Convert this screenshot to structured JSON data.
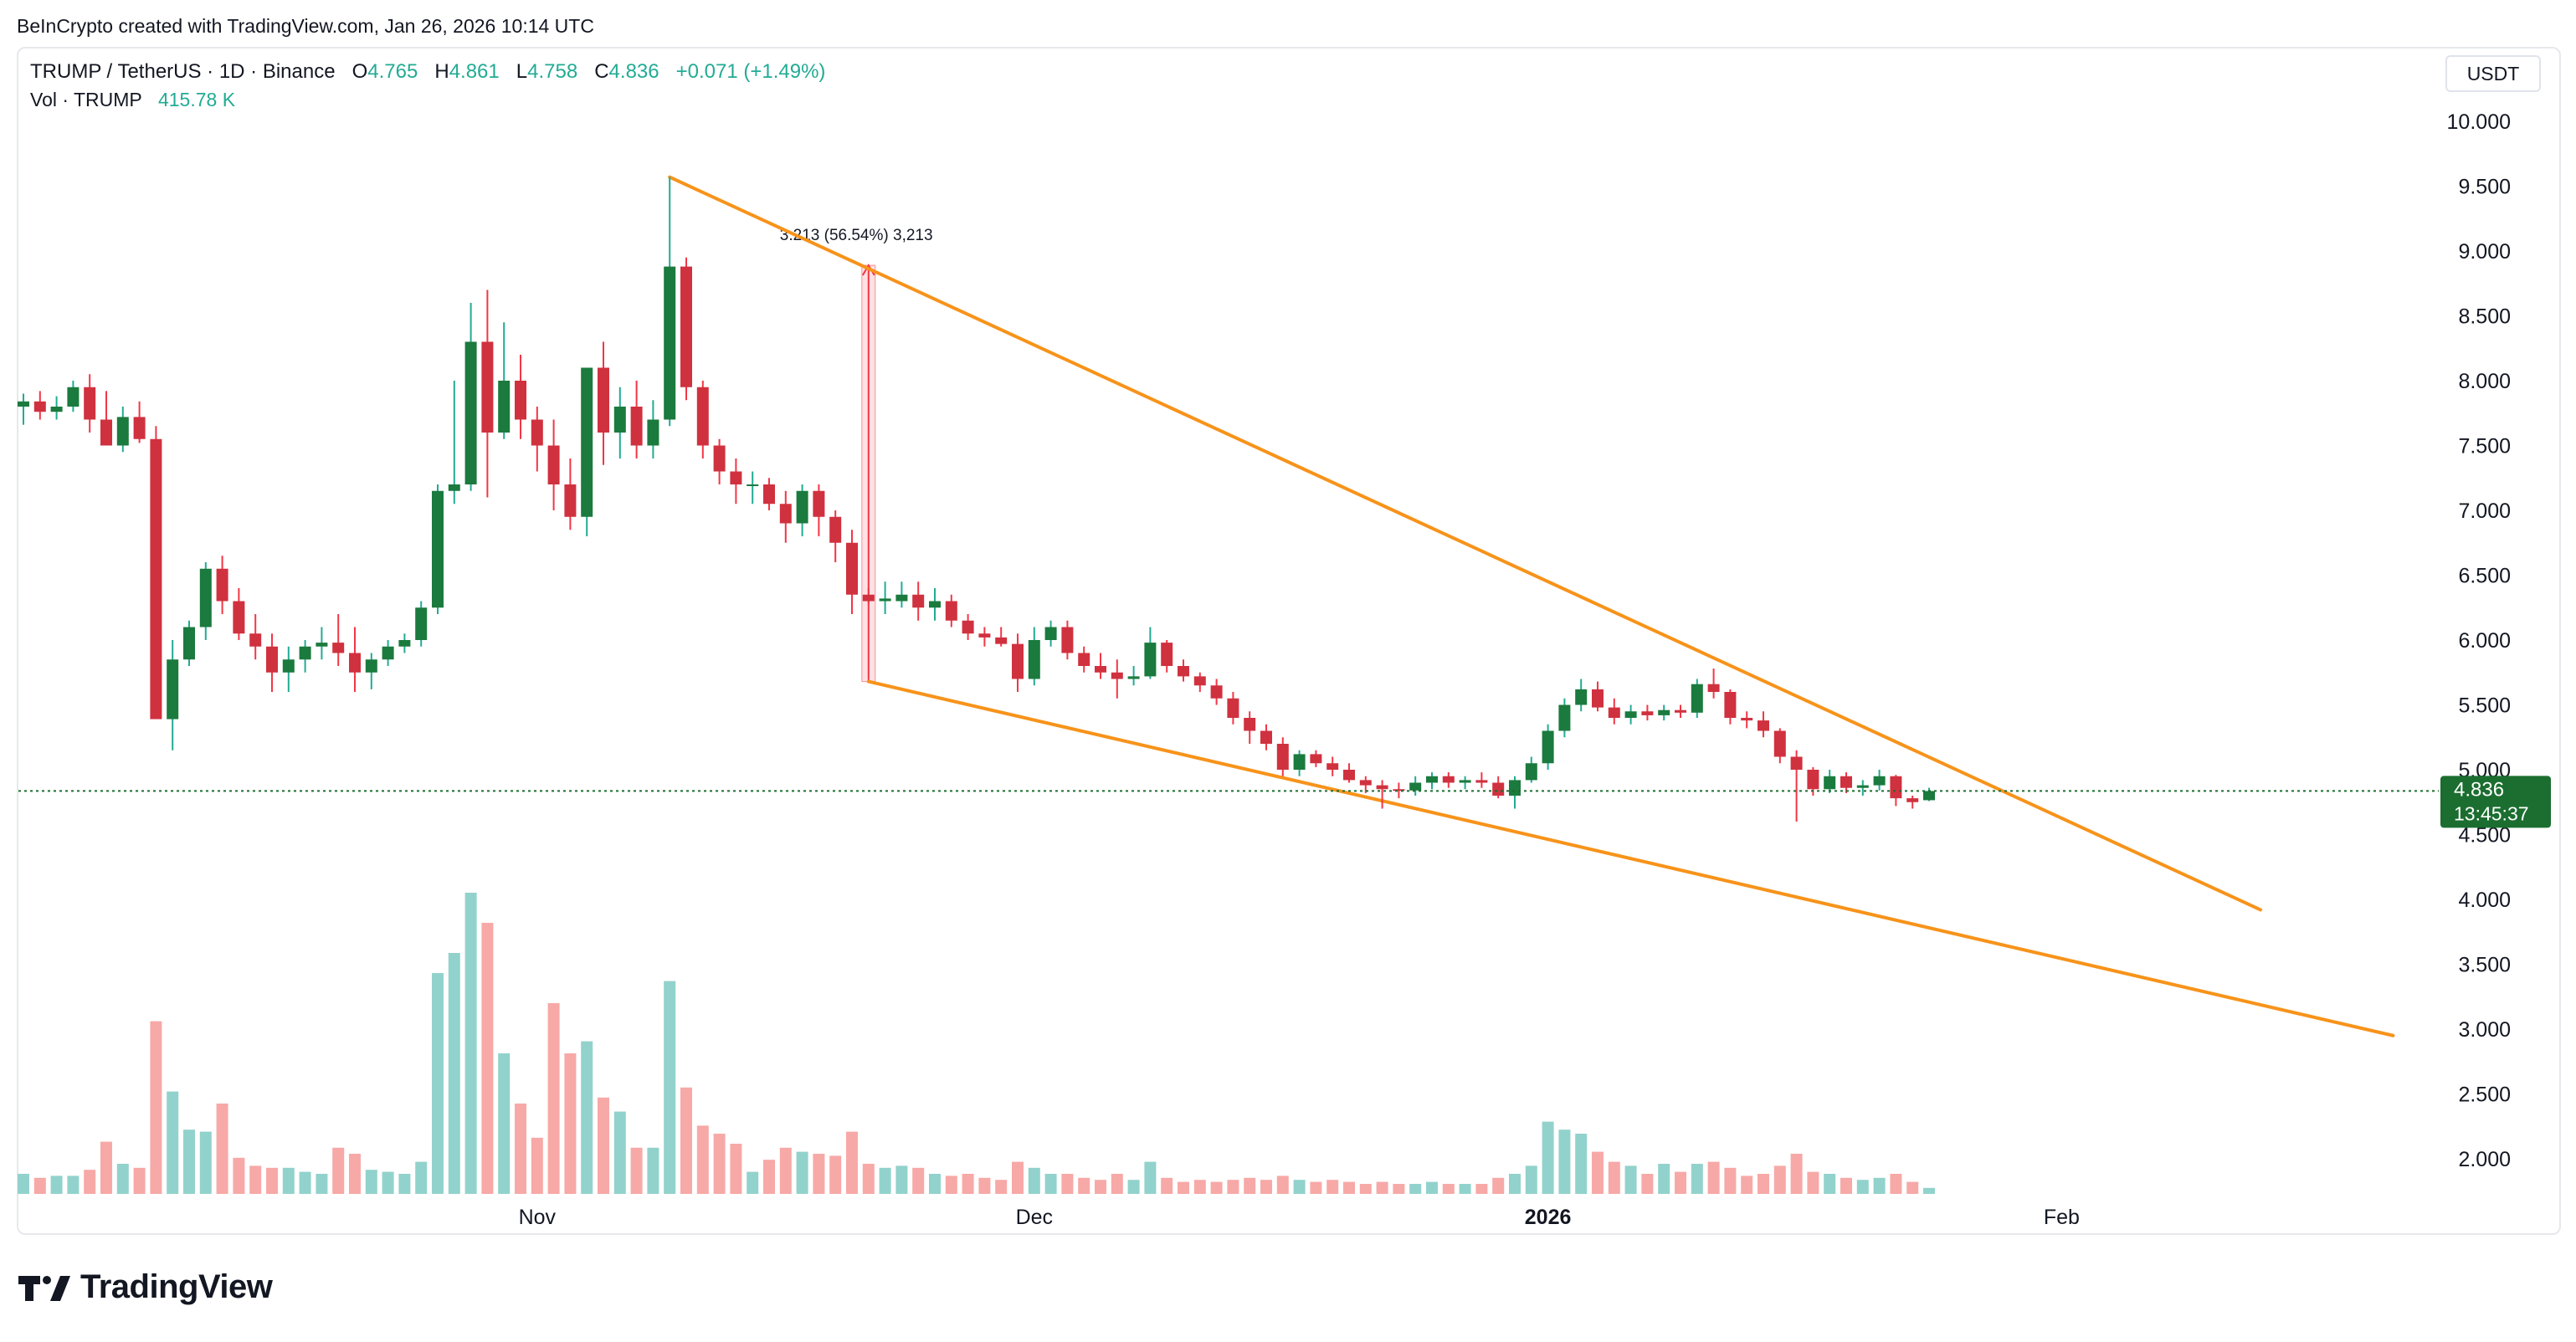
{
  "credit": "BeInCrypto created with TradingView.com, Jan 26, 2026 10:14 UTC",
  "legend": {
    "symbol": "TRUMP / TetherUS · 1D · Binance",
    "o_label": "O",
    "o_value": "4.765",
    "h_label": "H",
    "h_value": "4.861",
    "l_label": "L",
    "l_value": "4.758",
    "c_label": "C",
    "c_value": "4.836",
    "change": "+0.071 (+1.49%)",
    "vol_label": "Vol · TRUMP",
    "vol_value": "415.78 K"
  },
  "unit_button": "USDT",
  "logo_text": "TradingView",
  "colors": {
    "up": "#22ab94",
    "down": "#f23645",
    "upBody": "#1b7a3e",
    "downBody": "#d0313f",
    "upVol": "#92d2cc",
    "downVol": "#f7a9a7",
    "trend": "#f7931a",
    "priceTag": "#1b6e2f"
  },
  "chart_data": {
    "type": "candlestick",
    "symbol": "TRUMP / TetherUS",
    "interval": "1D",
    "exchange": "Binance",
    "y_axis": {
      "ylim": [
        1.5,
        10.3
      ],
      "ticks": [
        "10.000",
        "9.500",
        "9.000",
        "8.500",
        "8.000",
        "7.500",
        "7.000",
        "6.500",
        "6.000",
        "5.500",
        "5.000",
        "4.500",
        "4.000",
        "3.500",
        "3.000",
        "2.500",
        "2.000"
      ]
    },
    "x_axis": {
      "start_date": "2025-10-01",
      "end_date": "2026-02-28",
      "ticks": [
        {
          "label": "Nov",
          "date": "2025-11-01"
        },
        {
          "label": "Dec",
          "date": "2025-12-01"
        },
        {
          "label": "2026",
          "date": "2026-01-01",
          "bold": true
        },
        {
          "label": "Feb",
          "date": "2026-02-01"
        }
      ]
    },
    "current_price": {
      "price": "4.836",
      "countdown": "13:45:37"
    },
    "measure": {
      "label": "3.213 (56.54%) 3,213",
      "from_date": "2025-11-21",
      "from_price": 5.68,
      "to_price": 8.89
    },
    "trendlines": [
      {
        "name": "upper",
        "from": [
          "2025-11-09",
          9.57
        ],
        "to": [
          "2026-02-13",
          3.92
        ]
      },
      {
        "name": "lower",
        "from": [
          "2025-11-21",
          5.68
        ],
        "to": [
          "2026-02-21",
          2.95
        ]
      }
    ],
    "candles": [
      {
        "d": "2025-10-01",
        "o": 7.8,
        "h": 7.9,
        "l": 7.66,
        "c": 7.84,
        "v": 1.0
      },
      {
        "d": "2025-10-02",
        "o": 7.84,
        "h": 7.92,
        "l": 7.7,
        "c": 7.76,
        "v": 0.8
      },
      {
        "d": "2025-10-03",
        "o": 7.76,
        "h": 7.88,
        "l": 7.7,
        "c": 7.8,
        "v": 0.9
      },
      {
        "d": "2025-10-04",
        "o": 7.8,
        "h": 8.0,
        "l": 7.76,
        "c": 7.95,
        "v": 0.9
      },
      {
        "d": "2025-10-05",
        "o": 7.95,
        "h": 8.05,
        "l": 7.6,
        "c": 7.7,
        "v": 1.2
      },
      {
        "d": "2025-10-06",
        "o": 7.7,
        "h": 7.92,
        "l": 7.5,
        "c": 7.5,
        "v": 2.6
      },
      {
        "d": "2025-10-07",
        "o": 7.5,
        "h": 7.8,
        "l": 7.45,
        "c": 7.72,
        "v": 1.5
      },
      {
        "d": "2025-10-08",
        "o": 7.72,
        "h": 7.84,
        "l": 7.52,
        "c": 7.55,
        "v": 1.3
      },
      {
        "d": "2025-10-09",
        "o": 7.55,
        "h": 7.65,
        "l": 5.39,
        "c": 5.39,
        "v": 8.6
      },
      {
        "d": "2025-10-10",
        "o": 5.39,
        "h": 6.0,
        "l": 5.15,
        "c": 5.85,
        "v": 5.1
      },
      {
        "d": "2025-10-11",
        "o": 5.85,
        "h": 6.15,
        "l": 5.8,
        "c": 6.1,
        "v": 3.2
      },
      {
        "d": "2025-10-12",
        "o": 6.1,
        "h": 6.6,
        "l": 6.0,
        "c": 6.55,
        "v": 3.1
      },
      {
        "d": "2025-10-13",
        "o": 6.55,
        "h": 6.65,
        "l": 6.2,
        "c": 6.3,
        "v": 4.5
      },
      {
        "d": "2025-10-14",
        "o": 6.3,
        "h": 6.4,
        "l": 6.0,
        "c": 6.05,
        "v": 1.8
      },
      {
        "d": "2025-10-15",
        "o": 6.05,
        "h": 6.2,
        "l": 5.85,
        "c": 5.95,
        "v": 1.4
      },
      {
        "d": "2025-10-16",
        "o": 5.95,
        "h": 6.05,
        "l": 5.6,
        "c": 5.75,
        "v": 1.3
      },
      {
        "d": "2025-10-17",
        "o": 5.75,
        "h": 5.95,
        "l": 5.6,
        "c": 5.85,
        "v": 1.3
      },
      {
        "d": "2025-10-18",
        "o": 5.85,
        "h": 6.0,
        "l": 5.75,
        "c": 5.95,
        "v": 1.1
      },
      {
        "d": "2025-10-19",
        "o": 5.95,
        "h": 6.1,
        "l": 5.85,
        "c": 5.98,
        "v": 1.0
      },
      {
        "d": "2025-10-20",
        "o": 5.98,
        "h": 6.2,
        "l": 5.8,
        "c": 5.9,
        "v": 2.3
      },
      {
        "d": "2025-10-21",
        "o": 5.9,
        "h": 6.1,
        "l": 5.6,
        "c": 5.75,
        "v": 2.0
      },
      {
        "d": "2025-10-22",
        "o": 5.75,
        "h": 5.9,
        "l": 5.62,
        "c": 5.85,
        "v": 1.2
      },
      {
        "d": "2025-10-23",
        "o": 5.85,
        "h": 6.0,
        "l": 5.8,
        "c": 5.95,
        "v": 1.1
      },
      {
        "d": "2025-10-24",
        "o": 5.95,
        "h": 6.05,
        "l": 5.9,
        "c": 6.0,
        "v": 1.0
      },
      {
        "d": "2025-10-25",
        "o": 6.0,
        "h": 6.3,
        "l": 5.95,
        "c": 6.25,
        "v": 1.6
      },
      {
        "d": "2025-10-26",
        "o": 6.25,
        "h": 7.2,
        "l": 6.2,
        "c": 7.15,
        "v": 11.0
      },
      {
        "d": "2025-10-27",
        "o": 7.15,
        "h": 8.0,
        "l": 7.05,
        "c": 7.2,
        "v": 12.0
      },
      {
        "d": "2025-10-28",
        "o": 7.2,
        "h": 8.6,
        "l": 7.15,
        "c": 8.3,
        "v": 15.0
      },
      {
        "d": "2025-10-29",
        "o": 8.3,
        "h": 8.7,
        "l": 7.1,
        "c": 7.6,
        "v": 13.5
      },
      {
        "d": "2025-10-30",
        "o": 7.6,
        "h": 8.45,
        "l": 7.55,
        "c": 8.0,
        "v": 7.0
      },
      {
        "d": "2025-10-31",
        "o": 8.0,
        "h": 8.2,
        "l": 7.55,
        "c": 7.7,
        "v": 4.5
      },
      {
        "d": "2025-11-01",
        "o": 7.7,
        "h": 7.8,
        "l": 7.3,
        "c": 7.5,
        "v": 2.8
      },
      {
        "d": "2025-11-02",
        "o": 7.5,
        "h": 7.7,
        "l": 7.0,
        "c": 7.2,
        "v": 9.5
      },
      {
        "d": "2025-11-03",
        "o": 7.2,
        "h": 7.4,
        "l": 6.85,
        "c": 6.95,
        "v": 7.0
      },
      {
        "d": "2025-11-04",
        "o": 6.95,
        "h": 8.1,
        "l": 6.8,
        "c": 8.1,
        "v": 7.6
      },
      {
        "d": "2025-11-05",
        "o": 8.1,
        "h": 8.3,
        "l": 7.35,
        "c": 7.6,
        "v": 4.8
      },
      {
        "d": "2025-11-06",
        "o": 7.6,
        "h": 7.95,
        "l": 7.4,
        "c": 7.8,
        "v": 4.1
      },
      {
        "d": "2025-11-07",
        "o": 7.8,
        "h": 8.0,
        "l": 7.4,
        "c": 7.5,
        "v": 2.3
      },
      {
        "d": "2025-11-08",
        "o": 7.5,
        "h": 7.85,
        "l": 7.4,
        "c": 7.7,
        "v": 2.3
      },
      {
        "d": "2025-11-09",
        "o": 7.7,
        "h": 9.57,
        "l": 7.65,
        "c": 8.88,
        "v": 10.6
      },
      {
        "d": "2025-11-10",
        "o": 8.88,
        "h": 8.95,
        "l": 7.85,
        "c": 7.95,
        "v": 5.3
      },
      {
        "d": "2025-11-11",
        "o": 7.95,
        "h": 8.0,
        "l": 7.4,
        "c": 7.5,
        "v": 3.4
      },
      {
        "d": "2025-11-12",
        "o": 7.5,
        "h": 7.55,
        "l": 7.2,
        "c": 7.3,
        "v": 3.0
      },
      {
        "d": "2025-11-13",
        "o": 7.3,
        "h": 7.4,
        "l": 7.05,
        "c": 7.2,
        "v": 2.5
      },
      {
        "d": "2025-11-14",
        "o": 7.2,
        "h": 7.3,
        "l": 7.05,
        "c": 7.2,
        "v": 1.1
      },
      {
        "d": "2025-11-15",
        "o": 7.2,
        "h": 7.25,
        "l": 7.0,
        "c": 7.05,
        "v": 1.7
      },
      {
        "d": "2025-11-16",
        "o": 7.05,
        "h": 7.15,
        "l": 6.75,
        "c": 6.9,
        "v": 2.3
      },
      {
        "d": "2025-11-17",
        "o": 6.9,
        "h": 7.2,
        "l": 6.8,
        "c": 7.15,
        "v": 2.1
      },
      {
        "d": "2025-11-18",
        "o": 7.15,
        "h": 7.2,
        "l": 6.8,
        "c": 6.95,
        "v": 2.0
      },
      {
        "d": "2025-11-19",
        "o": 6.95,
        "h": 7.0,
        "l": 6.6,
        "c": 6.75,
        "v": 1.9
      },
      {
        "d": "2025-11-20",
        "o": 6.75,
        "h": 6.85,
        "l": 6.2,
        "c": 6.35,
        "v": 3.1
      },
      {
        "d": "2025-11-21",
        "o": 6.35,
        "h": 6.4,
        "l": 6.28,
        "c": 6.3,
        "v": 1.5
      },
      {
        "d": "2025-11-22",
        "o": 6.3,
        "h": 6.45,
        "l": 6.2,
        "c": 6.32,
        "v": 1.3
      },
      {
        "d": "2025-11-23",
        "o": 6.3,
        "h": 6.45,
        "l": 6.25,
        "c": 6.35,
        "v": 1.4
      },
      {
        "d": "2025-11-24",
        "o": 6.35,
        "h": 6.45,
        "l": 6.15,
        "c": 6.25,
        "v": 1.3
      },
      {
        "d": "2025-11-25",
        "o": 6.25,
        "h": 6.4,
        "l": 6.15,
        "c": 6.3,
        "v": 1.0
      },
      {
        "d": "2025-11-26",
        "o": 6.3,
        "h": 6.35,
        "l": 6.1,
        "c": 6.15,
        "v": 0.9
      },
      {
        "d": "2025-11-27",
        "o": 6.15,
        "h": 6.2,
        "l": 6.0,
        "c": 6.05,
        "v": 1.0
      },
      {
        "d": "2025-11-28",
        "o": 6.05,
        "h": 6.1,
        "l": 5.95,
        "c": 6.02,
        "v": 0.8
      },
      {
        "d": "2025-11-29",
        "o": 6.02,
        "h": 6.1,
        "l": 5.95,
        "c": 5.97,
        "v": 0.7
      },
      {
        "d": "2025-11-30",
        "o": 5.97,
        "h": 6.05,
        "l": 5.6,
        "c": 5.7,
        "v": 1.6
      },
      {
        "d": "2025-12-01",
        "o": 5.7,
        "h": 6.1,
        "l": 5.65,
        "c": 6.0,
        "v": 1.3
      },
      {
        "d": "2025-12-02",
        "o": 6.0,
        "h": 6.15,
        "l": 5.95,
        "c": 6.1,
        "v": 1.0
      },
      {
        "d": "2025-12-03",
        "o": 6.1,
        "h": 6.15,
        "l": 5.85,
        "c": 5.9,
        "v": 1.0
      },
      {
        "d": "2025-12-04",
        "o": 5.9,
        "h": 5.95,
        "l": 5.75,
        "c": 5.8,
        "v": 0.8
      },
      {
        "d": "2025-12-05",
        "o": 5.8,
        "h": 5.9,
        "l": 5.7,
        "c": 5.75,
        "v": 0.7
      },
      {
        "d": "2025-12-06",
        "o": 5.75,
        "h": 5.85,
        "l": 5.55,
        "c": 5.7,
        "v": 1.0
      },
      {
        "d": "2025-12-07",
        "o": 5.7,
        "h": 5.8,
        "l": 5.65,
        "c": 5.72,
        "v": 0.7
      },
      {
        "d": "2025-12-08",
        "o": 5.72,
        "h": 6.1,
        "l": 5.7,
        "c": 5.98,
        "v": 1.6
      },
      {
        "d": "2025-12-09",
        "o": 5.98,
        "h": 6.0,
        "l": 5.75,
        "c": 5.8,
        "v": 0.8
      },
      {
        "d": "2025-12-10",
        "o": 5.8,
        "h": 5.85,
        "l": 5.68,
        "c": 5.72,
        "v": 0.6
      },
      {
        "d": "2025-12-11",
        "o": 5.72,
        "h": 5.75,
        "l": 5.6,
        "c": 5.65,
        "v": 0.7
      },
      {
        "d": "2025-12-12",
        "o": 5.65,
        "h": 5.7,
        "l": 5.5,
        "c": 5.55,
        "v": 0.6
      },
      {
        "d": "2025-12-13",
        "o": 5.55,
        "h": 5.6,
        "l": 5.35,
        "c": 5.4,
        "v": 0.7
      },
      {
        "d": "2025-12-14",
        "o": 5.4,
        "h": 5.45,
        "l": 5.2,
        "c": 5.3,
        "v": 0.8
      },
      {
        "d": "2025-12-15",
        "o": 5.3,
        "h": 5.35,
        "l": 5.15,
        "c": 5.2,
        "v": 0.7
      },
      {
        "d": "2025-12-16",
        "o": 5.2,
        "h": 5.25,
        "l": 4.95,
        "c": 5.0,
        "v": 0.9
      },
      {
        "d": "2025-12-17",
        "o": 5.0,
        "h": 5.15,
        "l": 4.95,
        "c": 5.12,
        "v": 0.7
      },
      {
        "d": "2025-12-18",
        "o": 5.12,
        "h": 5.15,
        "l": 5.02,
        "c": 5.05,
        "v": 0.6
      },
      {
        "d": "2025-12-19",
        "o": 5.05,
        "h": 5.1,
        "l": 4.95,
        "c": 5.0,
        "v": 0.7
      },
      {
        "d": "2025-12-20",
        "o": 5.0,
        "h": 5.05,
        "l": 4.9,
        "c": 4.92,
        "v": 0.6
      },
      {
        "d": "2025-12-21",
        "o": 4.92,
        "h": 4.95,
        "l": 4.82,
        "c": 4.88,
        "v": 0.5
      },
      {
        "d": "2025-12-22",
        "o": 4.88,
        "h": 4.92,
        "l": 4.7,
        "c": 4.85,
        "v": 0.6
      },
      {
        "d": "2025-12-23",
        "o": 4.85,
        "h": 4.9,
        "l": 4.78,
        "c": 4.84,
        "v": 0.5
      },
      {
        "d": "2025-12-24",
        "o": 4.84,
        "h": 4.95,
        "l": 4.8,
        "c": 4.9,
        "v": 0.5
      },
      {
        "d": "2025-12-25",
        "o": 4.9,
        "h": 4.98,
        "l": 4.85,
        "c": 4.95,
        "v": 0.6
      },
      {
        "d": "2025-12-26",
        "o": 4.95,
        "h": 4.98,
        "l": 4.86,
        "c": 4.9,
        "v": 0.5
      },
      {
        "d": "2025-12-27",
        "o": 4.9,
        "h": 4.95,
        "l": 4.85,
        "c": 4.92,
        "v": 0.5
      },
      {
        "d": "2025-12-28",
        "o": 4.92,
        "h": 4.98,
        "l": 4.86,
        "c": 4.9,
        "v": 0.5
      },
      {
        "d": "2025-12-29",
        "o": 4.9,
        "h": 4.95,
        "l": 4.78,
        "c": 4.8,
        "v": 0.8
      },
      {
        "d": "2025-12-30",
        "o": 4.8,
        "h": 4.95,
        "l": 4.7,
        "c": 4.92,
        "v": 1.0
      },
      {
        "d": "2025-12-31",
        "o": 4.92,
        "h": 5.1,
        "l": 4.9,
        "c": 5.05,
        "v": 1.4
      },
      {
        "d": "2026-01-01",
        "o": 5.05,
        "h": 5.35,
        "l": 5.0,
        "c": 5.3,
        "v": 3.6
      },
      {
        "d": "2026-01-02",
        "o": 5.3,
        "h": 5.55,
        "l": 5.25,
        "c": 5.5,
        "v": 3.2
      },
      {
        "d": "2026-01-03",
        "o": 5.5,
        "h": 5.7,
        "l": 5.45,
        "c": 5.62,
        "v": 3.0
      },
      {
        "d": "2026-01-04",
        "o": 5.62,
        "h": 5.68,
        "l": 5.45,
        "c": 5.48,
        "v": 2.1
      },
      {
        "d": "2026-01-05",
        "o": 5.48,
        "h": 5.55,
        "l": 5.35,
        "c": 5.4,
        "v": 1.6
      },
      {
        "d": "2026-01-06",
        "o": 5.4,
        "h": 5.5,
        "l": 5.35,
        "c": 5.45,
        "v": 1.4
      },
      {
        "d": "2026-01-07",
        "o": 5.45,
        "h": 5.5,
        "l": 5.38,
        "c": 5.42,
        "v": 1.0
      },
      {
        "d": "2026-01-08",
        "o": 5.42,
        "h": 5.5,
        "l": 5.38,
        "c": 5.46,
        "v": 1.5
      },
      {
        "d": "2026-01-09",
        "o": 5.46,
        "h": 5.5,
        "l": 5.4,
        "c": 5.44,
        "v": 1.1
      },
      {
        "d": "2026-01-10",
        "o": 5.44,
        "h": 5.7,
        "l": 5.4,
        "c": 5.66,
        "v": 1.5
      },
      {
        "d": "2026-01-11",
        "o": 5.66,
        "h": 5.78,
        "l": 5.55,
        "c": 5.6,
        "v": 1.6
      },
      {
        "d": "2026-01-12",
        "o": 5.6,
        "h": 5.62,
        "l": 5.35,
        "c": 5.4,
        "v": 1.3
      },
      {
        "d": "2026-01-13",
        "o": 5.4,
        "h": 5.45,
        "l": 5.32,
        "c": 5.38,
        "v": 0.9
      },
      {
        "d": "2026-01-14",
        "o": 5.38,
        "h": 5.45,
        "l": 5.25,
        "c": 5.3,
        "v": 1.0
      },
      {
        "d": "2026-01-15",
        "o": 5.3,
        "h": 5.32,
        "l": 5.05,
        "c": 5.1,
        "v": 1.4
      },
      {
        "d": "2026-01-16",
        "o": 5.1,
        "h": 5.15,
        "l": 4.6,
        "c": 5.0,
        "v": 2.0
      },
      {
        "d": "2026-01-17",
        "o": 5.0,
        "h": 5.02,
        "l": 4.8,
        "c": 4.85,
        "v": 1.1
      },
      {
        "d": "2026-01-18",
        "o": 4.85,
        "h": 5.0,
        "l": 4.82,
        "c": 4.95,
        "v": 1.0
      },
      {
        "d": "2026-01-19",
        "o": 4.95,
        "h": 4.98,
        "l": 4.82,
        "c": 4.86,
        "v": 0.8
      },
      {
        "d": "2026-01-20",
        "o": 4.86,
        "h": 4.92,
        "l": 4.8,
        "c": 4.88,
        "v": 0.7
      },
      {
        "d": "2026-01-21",
        "o": 4.88,
        "h": 5.0,
        "l": 4.84,
        "c": 4.95,
        "v": 0.8
      },
      {
        "d": "2026-01-22",
        "o": 4.95,
        "h": 4.96,
        "l": 4.72,
        "c": 4.78,
        "v": 1.0
      },
      {
        "d": "2026-01-23",
        "o": 4.78,
        "h": 4.8,
        "l": 4.7,
        "c": 4.75,
        "v": 0.6
      },
      {
        "d": "2026-01-24",
        "o": 4.765,
        "h": 4.861,
        "l": 4.758,
        "c": 4.836,
        "v": 0.3
      }
    ]
  }
}
